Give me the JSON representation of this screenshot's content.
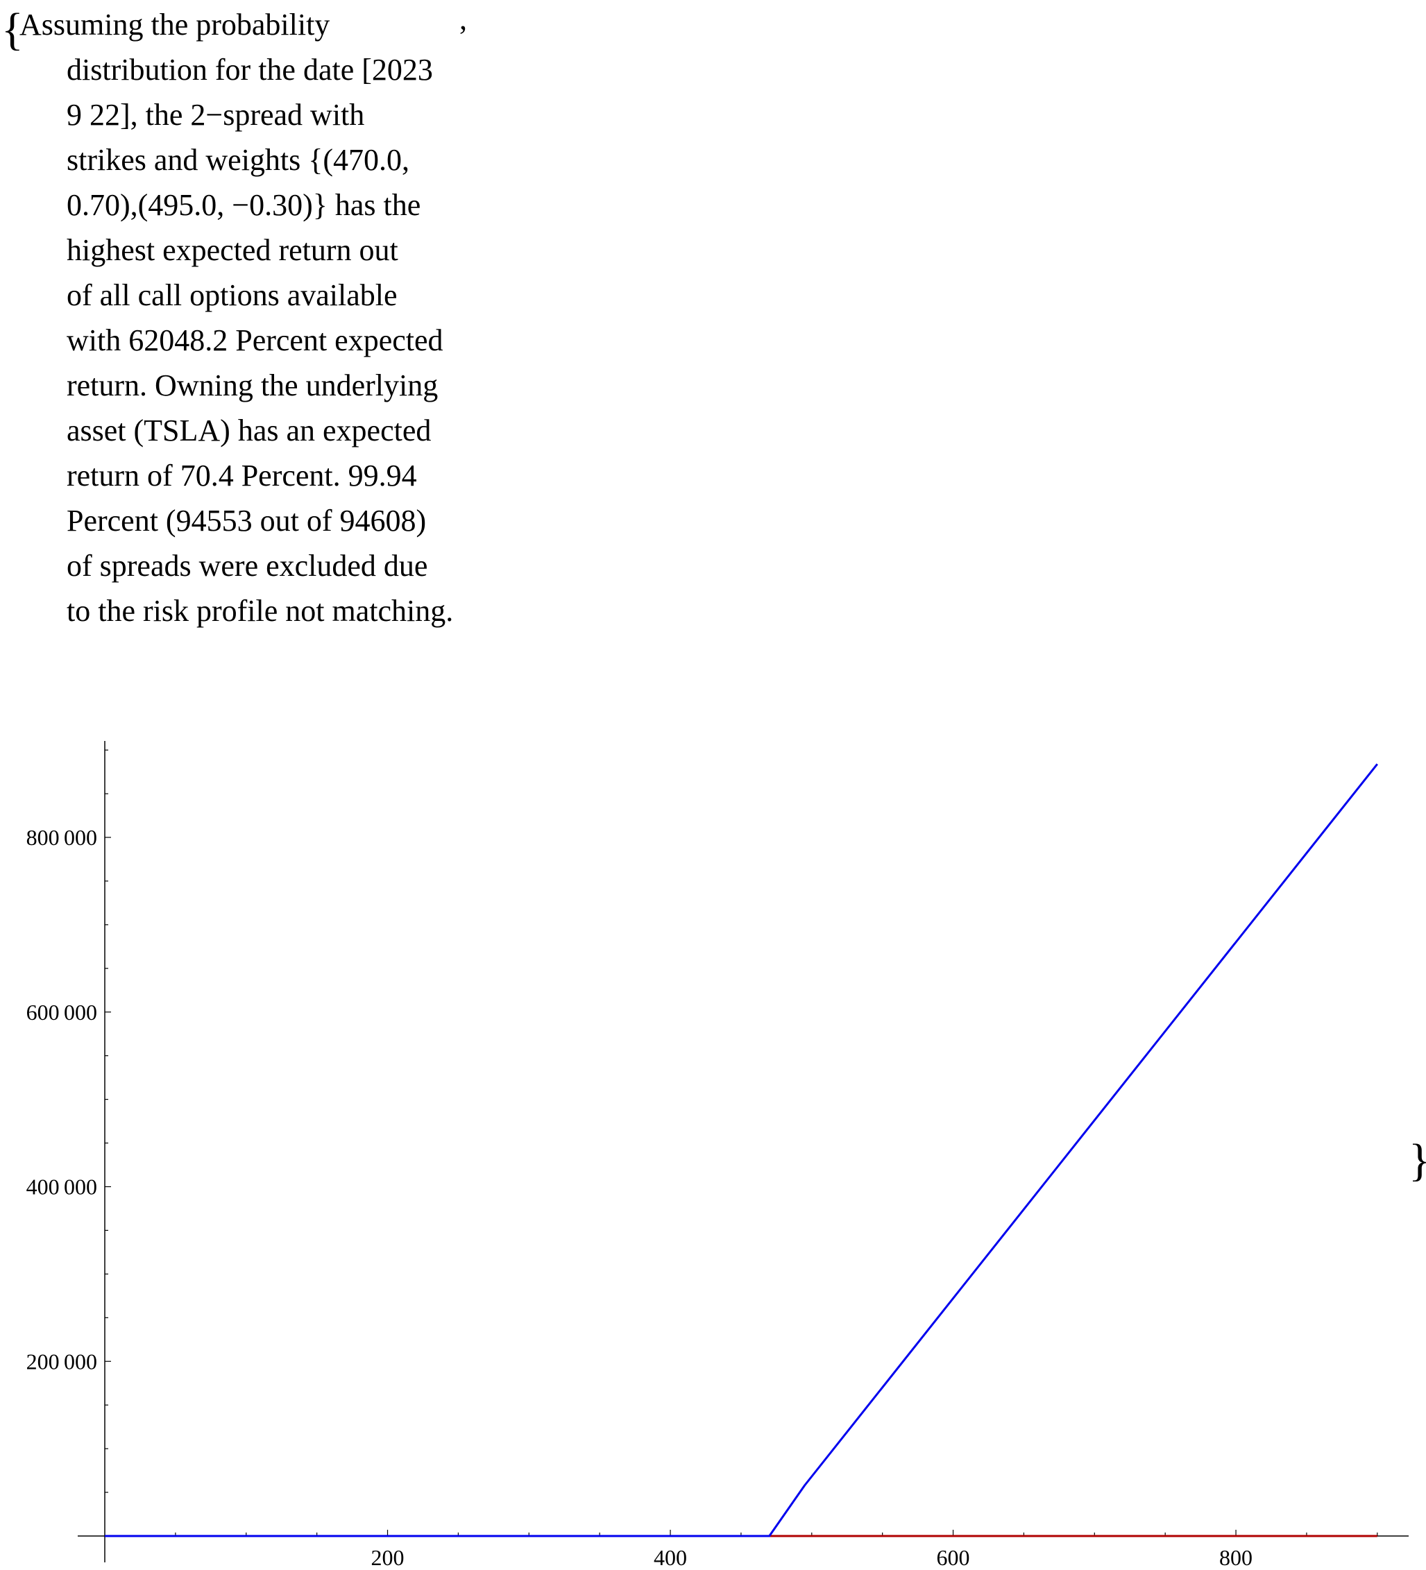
{
  "output": {
    "open_brace": "{",
    "close_brace": "}",
    "separator": ",",
    "text_lines": [
      "Assuming the probability",
      "distribution for the date [2023",
      "9 22], the 2−spread with",
      "strikes and weights {(470.0,",
      "0.70),(495.0, −0.30)} has the",
      "highest expected return out",
      "of all call options available",
      "with 62048.2 Percent expected",
      "return. Owning the underlying",
      "asset (TSLA) has an expected",
      "return of 70.4 Percent. 99.94",
      "Percent (94553 out of 94608)",
      "of spreads were excluded due",
      "to the risk profile not matching."
    ]
  },
  "chart_data": {
    "type": "line",
    "title": "",
    "xlabel": "",
    "ylabel": "",
    "xlim": [
      0,
      920
    ],
    "ylim": [
      -20000,
      920000
    ],
    "grid": false,
    "legend": "none",
    "x_ticks": [
      200,
      400,
      600,
      800
    ],
    "x_tick_labels": [
      "200",
      "400",
      "600",
      "800"
    ],
    "y_ticks": [
      200000,
      400000,
      600000,
      800000
    ],
    "y_tick_labels": [
      "200 000",
      "400 000",
      "600 000",
      "800 000"
    ],
    "series": [
      {
        "color": "#0000ee",
        "points": [
          [
            0,
            0
          ],
          [
            470,
            0
          ],
          [
            495,
            58000
          ],
          [
            900,
            884000
          ]
        ]
      },
      {
        "color": "#b00000",
        "points": [
          [
            0,
            0
          ],
          [
            900,
            0
          ]
        ]
      }
    ]
  }
}
